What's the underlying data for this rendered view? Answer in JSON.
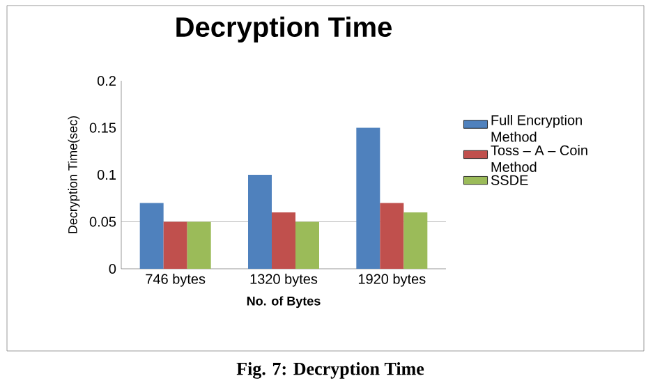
{
  "chart_data": {
    "type": "bar",
    "title": "Decryption Time",
    "xlabel": "No. of Bytes",
    "ylabel": "Decryption Time(sec)",
    "categories": [
      "746 bytes",
      "1320 bytes",
      "1920 bytes"
    ],
    "series": [
      {
        "name": "Full Encryption Method",
        "color": "#4f81bd",
        "values": [
          0.07,
          0.1,
          0.15
        ]
      },
      {
        "name": "Toss – A – Coin Method",
        "color": "#c0504d",
        "values": [
          0.05,
          0.06,
          0.07
        ]
      },
      {
        "name": "SSDE",
        "color": "#9bbb59",
        "values": [
          0.05,
          0.05,
          0.06
        ]
      }
    ],
    "ylim": [
      0,
      0.2
    ],
    "yticks": [
      0,
      0.05,
      0.1,
      0.15,
      0.2
    ],
    "ref_lines": [
      {
        "axis": "y",
        "value": 0.05,
        "color": "#a6a6a6"
      }
    ],
    "legend": "right",
    "grid": false,
    "annotations": [
      "Fig. 7: Decryption Time"
    ]
  }
}
